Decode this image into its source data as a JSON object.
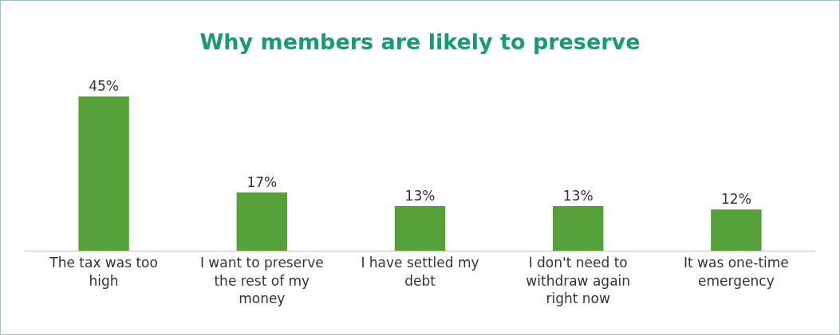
{
  "chart_data": {
    "type": "bar",
    "title": "Why members are likely to preserve",
    "categories": [
      "The tax was too high",
      "I want to preserve the rest of my money",
      "I have settled my debt",
      "I don't need to withdraw again right now",
      "It was one-time emergency"
    ],
    "values": [
      45,
      17,
      13,
      13,
      12
    ],
    "value_labels": [
      "45%",
      "17%",
      "13%",
      "13%",
      "12%"
    ],
    "color": "#56a03a"
  }
}
